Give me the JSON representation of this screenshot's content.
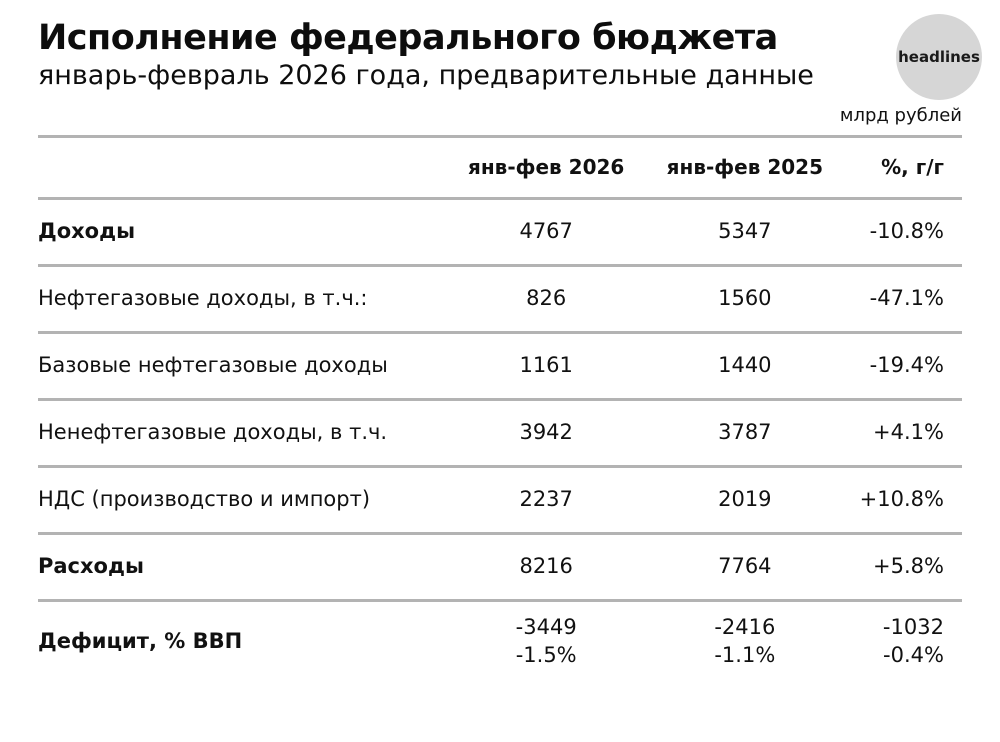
{
  "header": {
    "title": "Исполнение федерального бюджета",
    "subtitle": "январь-февраль 2026 года, предварительные данные",
    "badge": "headlines",
    "units": "млрд рублей"
  },
  "chart_data": {
    "type": "table",
    "columns": [
      "",
      "янв-фев 2026",
      "янв-фев 2025",
      "%, г/г"
    ],
    "rows": [
      {
        "label": "Доходы",
        "v1": "4767",
        "v2": "5347",
        "v3": "-10.8%"
      },
      {
        "label": "Нефтегазовые доходы, в т.ч.:",
        "v1": "826",
        "v2": "1560",
        "v3": "-47.1%"
      },
      {
        "label": "Базовые нефтегазовые доходы",
        "v1": "1161",
        "v2": "1440",
        "v3": "-19.4%"
      },
      {
        "label": "Ненефтегазовые доходы, в т.ч.",
        "v1": "3942",
        "v2": "3787",
        "v3": "+4.1%"
      },
      {
        "label": "НДС (производство и импорт)",
        "v1": "2237",
        "v2": "2019",
        "v3": "+10.8%"
      },
      {
        "label": "Расходы",
        "v1": "8216",
        "v2": "7764",
        "v3": "+5.8%"
      },
      {
        "label": "Дефицит, % ВВП",
        "v1": "-3449",
        "v1b": "-1.5%",
        "v2": "-2416",
        "v2b": "-1.1%",
        "v3": "-1032",
        "v3b": "-0.4%"
      }
    ]
  }
}
